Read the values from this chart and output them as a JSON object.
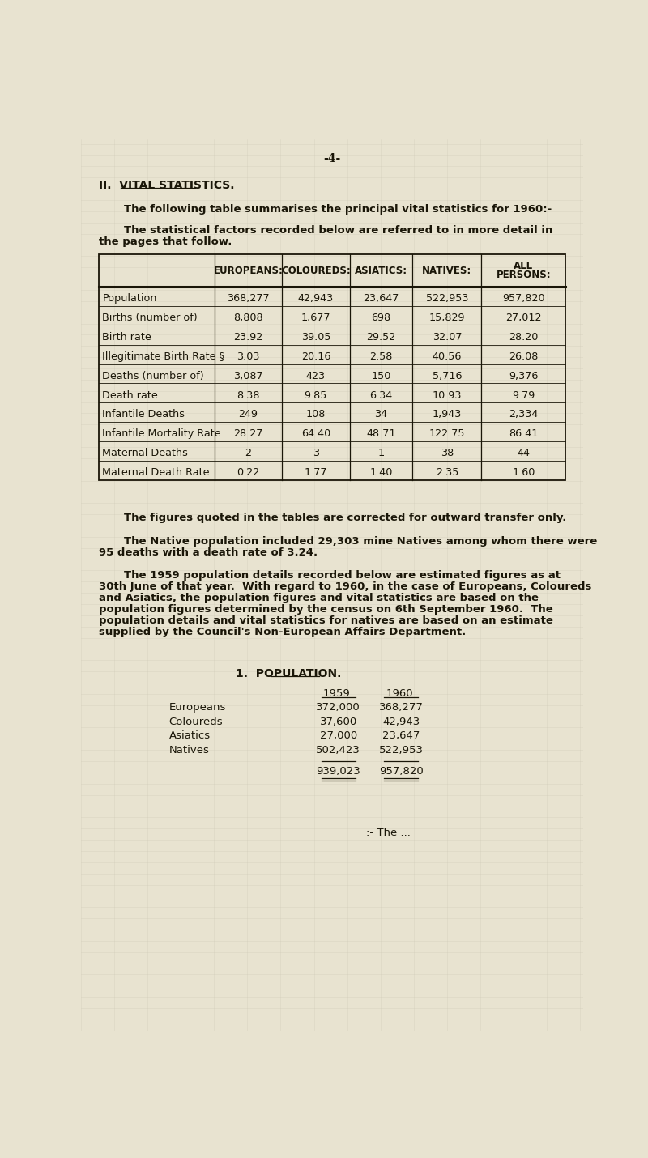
{
  "bg_color": "#e8e3d0",
  "text_color": "#1a1608",
  "page_number": "-4-",
  "section_title_pre": "II.  ",
  "section_title_ul": "VITAL STATISTICS.",
  "intro_line1": "The following table summarises the principal vital statistics for 1960:-",
  "intro_line2": "The statistical factors recorded below are referred to in more detail in",
  "intro_line3": "the pages that follow.",
  "table_headers": [
    "",
    "EUROPEANS:",
    "COLOUREDS:",
    "ASIATICS:",
    "NATIVES:",
    "ALL\nPERSONS:"
  ],
  "table_rows": [
    [
      "Population",
      "368,277",
      "42,943",
      "23,647",
      "522,953",
      "957,820"
    ],
    [
      "Births (number of)",
      "8,808",
      "1,677",
      "698",
      "15,829",
      "27,012"
    ],
    [
      "Birth rate",
      "23.92",
      "39.05",
      "29.52",
      "32.07",
      "28.20"
    ],
    [
      "Illegitimate Birth Rate §",
      "3.03",
      "20.16",
      "2.58",
      "40.56",
      "26.08"
    ],
    [
      "Deaths (number of)",
      "3,087",
      "423",
      "150",
      "5,716",
      "9,376"
    ],
    [
      "Death rate",
      "8.38",
      "9.85",
      "6.34",
      "10.93",
      "9.79"
    ],
    [
      "Infantile Deaths",
      "249",
      "108",
      "34",
      "1,943",
      "2,334"
    ],
    [
      "Infantile Mortality Rate",
      "28.27",
      "64.40",
      "48.71",
      "122.75",
      "86.41"
    ],
    [
      "Maternal Deaths",
      "2",
      "3",
      "1",
      "38",
      "44"
    ],
    [
      "Maternal Death Rate",
      "0.22",
      "1.77",
      "1.40",
      "2.35",
      "1.60"
    ]
  ],
  "note1": "The figures quoted in the tables are corrected for outward transfer only.",
  "note2a": "The Native population included 29,303 mine Natives among whom there were",
  "note2b": "95 deaths with a death rate of 3.24.",
  "note3a": "The 1959 population details recorded below are estimated figures as at",
  "note3b": "30th June of that year.  With regard to 1960, in the case of Europeans, Coloureds",
  "note3c": "and Asiatics, the population figures and vital statistics are based on the",
  "note3d": "population figures determined by the census on 6th September 1960.  The",
  "note3e": "population details and vital statistics for natives are based on an estimate",
  "note3f": "supplied by the Council's Non-European Affairs Department.",
  "pop_section_pre": "1.  ",
  "pop_section_ul": "POPULATION.",
  "pop_headers": [
    "1959.",
    "1960."
  ],
  "pop_rows": [
    [
      "Europeans",
      "372,000",
      "368,277"
    ],
    [
      "Coloureds",
      "37,600",
      "42,943"
    ],
    [
      "Asiatics",
      "27,000",
      "23,647"
    ],
    [
      "Natives",
      "502,423",
      "522,953"
    ]
  ],
  "pop_totals": [
    "939,023",
    "957,820"
  ],
  "ending": ":- The ...",
  "grid_color": "#c8c3b0",
  "grid_alpha": 0.4
}
